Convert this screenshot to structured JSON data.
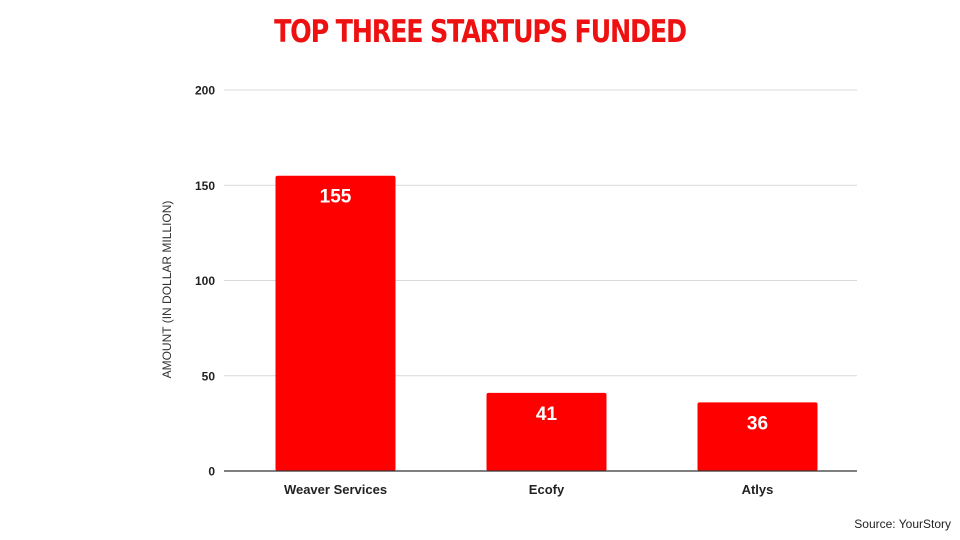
{
  "chart_data": {
    "type": "bar",
    "title": "TOP THREE STARTUPS FUNDED",
    "xlabel": "",
    "ylabel": "AMOUNT (IN DOLLAR MILLION)",
    "categories": [
      "Weaver Services",
      "Ecofy",
      "Atlys"
    ],
    "values": [
      155,
      41,
      36
    ],
    "data_labels": [
      "155",
      "41",
      "36"
    ],
    "ylim": [
      0,
      200
    ],
    "yticks": [
      0,
      50,
      100,
      150,
      200
    ],
    "ytick_labels": [
      "0",
      "50",
      "100",
      "150",
      "200"
    ],
    "grid": true,
    "legend": "none",
    "bar_color": "#ff0000"
  },
  "source": "Source: YourStory"
}
